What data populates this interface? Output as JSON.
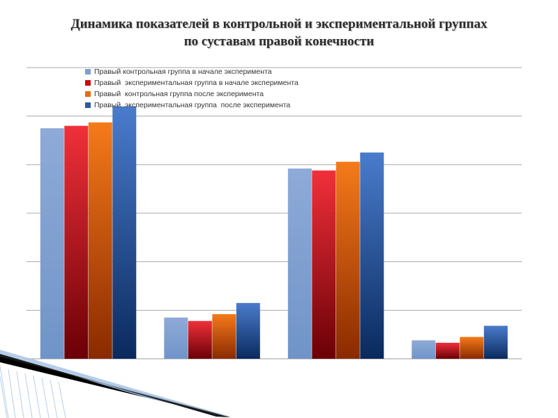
{
  "slide": {
    "title_line1": "Динамика показателей  в контрольной и экспериментальной группах",
    "title_line2": "по суставам правой конечности"
  },
  "chart_data": {
    "type": "bar",
    "categories": [
      "",
      "",
      "",
      ""
    ],
    "ylim": [
      0,
      6
    ],
    "grid": true,
    "legend_position": "top-left",
    "series": [
      {
        "name": "Правый контрольная группа в начале эксперимента",
        "color": "#7f9fcf",
        "values": [
          4.75,
          0.85,
          3.92,
          0.38
        ]
      },
      {
        "name": "Правый  экспериментальная группа в начале эксперимента",
        "color": "#cc0a12",
        "values": [
          4.8,
          0.78,
          3.88,
          0.33
        ]
      },
      {
        "name": "Правый  контрольная группа после эксперимента",
        "color": "#ea6a10",
        "values": [
          4.87,
          0.92,
          4.06,
          0.45
        ]
      },
      {
        "name": "Правый  экспериментальная группа  после эксперимента",
        "color": "#2c5aa0",
        "values": [
          5.2,
          1.15,
          4.25,
          0.68
        ]
      }
    ]
  }
}
